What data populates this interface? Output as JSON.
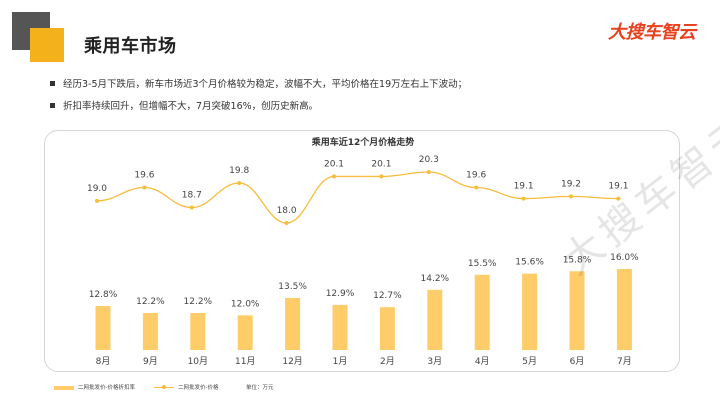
{
  "page": {
    "title": "乘用车市场",
    "logo": "大搜车智云",
    "watermark": "大搜车智云",
    "bullets": [
      "经历3-5月下跌后，新车市场近3个月价格较为稳定，波幅不大，平均价格在19万左右上下波动；",
      "折扣率持续回升，但增幅不大，7月突破16%，创历史新高。"
    ]
  },
  "legend": {
    "bar_label": "二网批发价-价格折扣率",
    "line_label": "二网批发价-价格",
    "unit_label": "单位：万元"
  },
  "colors": {
    "bar": "#fecd6a",
    "line": "#f7bd3c",
    "accent": "#f3b21c",
    "logo": "#e8411f"
  },
  "chart_data": {
    "type": "bar+line",
    "title": "乘用车近12个月价格走势",
    "categories": [
      "8月",
      "9月",
      "10月",
      "11月",
      "12月",
      "1月",
      "2月",
      "3月",
      "4月",
      "5月",
      "6月",
      "7月"
    ],
    "series": [
      {
        "name": "二网批发价-价格折扣率",
        "type": "bar",
        "values": [
          12.8,
          12.2,
          12.2,
          12.0,
          13.5,
          12.9,
          12.7,
          14.2,
          15.5,
          15.6,
          15.8,
          16.0
        ],
        "labels": [
          "12.8%",
          "12.2%",
          "12.2%",
          "12.0%",
          "13.5%",
          "12.9%",
          "12.7%",
          "14.2%",
          "15.5%",
          "15.6%",
          "15.8%",
          "16.0%"
        ]
      },
      {
        "name": "二网批发价-价格",
        "type": "line",
        "values": [
          19.0,
          19.6,
          18.7,
          19.8,
          18.0,
          20.1,
          20.1,
          20.3,
          19.6,
          19.1,
          19.2,
          19.1
        ],
        "labels": [
          "19.0",
          "19.6",
          "18.7",
          "19.8",
          "18.0",
          "20.1",
          "20.1",
          "20.3",
          "19.6",
          "19.1",
          "19.2",
          "19.1"
        ]
      }
    ],
    "bar_range": [
      9,
      16.6
    ],
    "line_range": [
      18.0,
      20.3
    ],
    "unit": "万元",
    "legend_position": "bottom-left",
    "grid": false
  }
}
